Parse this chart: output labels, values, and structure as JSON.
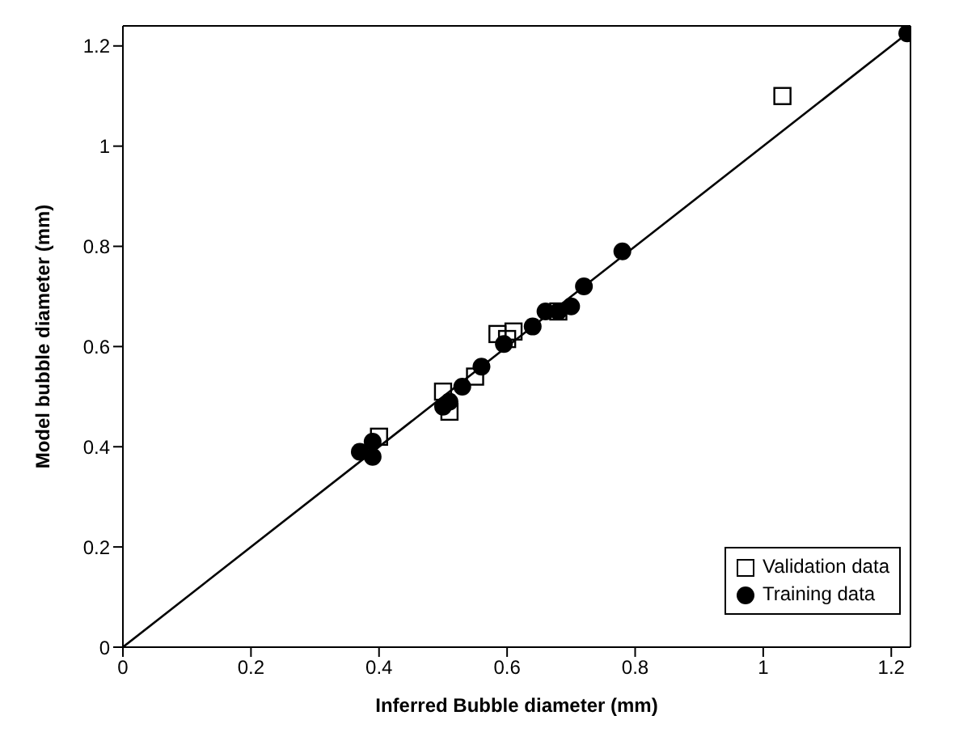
{
  "chart_data": {
    "type": "scatter",
    "xlabel": "Inferred Bubble diameter (mm)",
    "ylabel": "Model bubble diameter (mm)",
    "xlim": [
      0,
      1.23
    ],
    "ylim": [
      0,
      1.24
    ],
    "xticks": [
      0,
      0.2,
      0.4,
      0.6,
      0.8,
      1,
      1.2
    ],
    "yticks": [
      0,
      0.2,
      0.4,
      0.6,
      0.8,
      1,
      1.2
    ],
    "legend": "bottom right",
    "series": [
      {
        "name": "Validation data",
        "color": "#000000",
        "marker": "square",
        "x": [
          0.4,
          0.5,
          0.51,
          0.55,
          0.585,
          0.6,
          0.61,
          0.68,
          1.03
        ],
        "values": [
          0.42,
          0.51,
          0.47,
          0.54,
          0.625,
          0.615,
          0.63,
          0.67,
          1.1
        ]
      },
      {
        "name": "Training data",
        "color": "#000000",
        "marker": "circle",
        "x": [
          0.37,
          0.39,
          0.39,
          0.5,
          0.51,
          0.53,
          0.56,
          0.595,
          0.64,
          0.66,
          0.68,
          0.7,
          0.72,
          0.78,
          1.225
        ],
        "values": [
          0.39,
          0.38,
          0.41,
          0.48,
          0.49,
          0.52,
          0.56,
          0.605,
          0.64,
          0.67,
          0.67,
          0.68,
          0.72,
          0.79,
          1.225
        ]
      },
      {
        "type": "line",
        "color": "#000000",
        "marker": "none",
        "x": [
          0,
          1.225
        ],
        "values": [
          0,
          1.225
        ]
      }
    ]
  }
}
